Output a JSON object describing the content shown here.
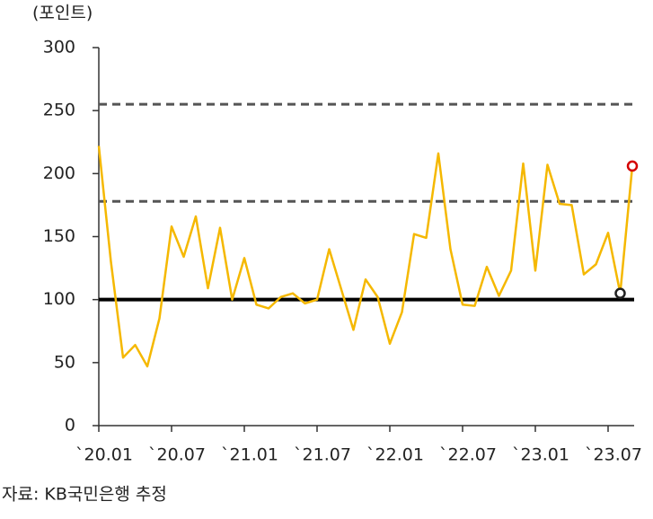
{
  "chart_data": {
    "type": "line",
    "unit_label": "(포인트)",
    "source": "자료: KB국민은행 추정",
    "categories": [
      "`20.01",
      null,
      null,
      null,
      null,
      null,
      "`20.07",
      null,
      null,
      null,
      null,
      null,
      "`21.01",
      null,
      null,
      null,
      null,
      null,
      "`21.07",
      null,
      null,
      null,
      null,
      null,
      "`22.01",
      null,
      null,
      null,
      null,
      null,
      "`22.07",
      null,
      null,
      null,
      null,
      null,
      "`23.01",
      null,
      null,
      null,
      null,
      null,
      "`23.07",
      null,
      null
    ],
    "series": [
      {
        "color": "#f5b800",
        "values": [
          222,
          130,
          54,
          64,
          47,
          85,
          158,
          134,
          166,
          109,
          157,
          100,
          133,
          96,
          93,
          102,
          105,
          97,
          100,
          140,
          108,
          76,
          116,
          102,
          65,
          90,
          152,
          149,
          216,
          140,
          96,
          95,
          126,
          103,
          123,
          208,
          123,
          207,
          176,
          175,
          120,
          128,
          153,
          105,
          206
        ]
      }
    ],
    "ylim": [
      0,
      300
    ],
    "yticks": [
      0,
      50,
      100,
      150,
      200,
      250,
      300
    ],
    "reference_lines": [
      {
        "value": 100,
        "style": "solid",
        "color": "#000000"
      },
      {
        "value": 255,
        "style": "dashed",
        "color": "#555555"
      },
      {
        "value": 178,
        "style": "dashed",
        "color": "#555555"
      }
    ],
    "markers": [
      {
        "index": 43,
        "color": "#222222"
      },
      {
        "index": 44,
        "color": "#d40000"
      }
    ]
  }
}
